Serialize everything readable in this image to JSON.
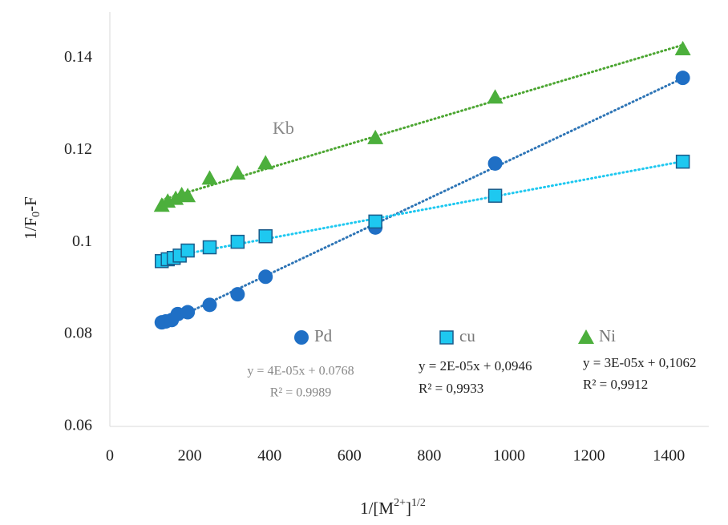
{
  "chart_data": {
    "type": "scatter",
    "y_label": [
      "1/F",
      "0",
      "-F"
    ],
    "x_label": [
      "1/[M",
      "2+",
      "]",
      "1/2"
    ],
    "xlim": [
      0,
      1500
    ],
    "xticks": [
      0,
      200,
      400,
      600,
      800,
      1000,
      1200,
      1400
    ],
    "ylim": [
      0.06,
      0.15
    ],
    "yticks": [
      0.06,
      0.08,
      0.1,
      0.12,
      0.14
    ],
    "grid": false,
    "series": [
      {
        "name": "Pd",
        "color": "#1f6fc5",
        "trend_color": "#2e75b6",
        "marker": "circle",
        "x": [
          130,
          140,
          155,
          170,
          195,
          250,
          320,
          390,
          665,
          965,
          1435
        ],
        "y": [
          0.0826,
          0.0828,
          0.0831,
          0.0844,
          0.0848,
          0.0864,
          0.0887,
          0.0925,
          0.1032,
          0.1171,
          0.1357
        ]
      },
      {
        "name": "cu",
        "color": "#1ec8f0",
        "trend_color": "#1ec8f0",
        "marker": "square",
        "x": [
          130,
          145,
          160,
          175,
          195,
          250,
          320,
          390,
          665,
          965,
          1435
        ],
        "y": [
          0.0959,
          0.0963,
          0.0966,
          0.0971,
          0.0982,
          0.0989,
          0.1001,
          0.1013,
          0.1045,
          0.1101,
          0.1175
        ]
      },
      {
        "name": "Ni",
        "color": "#4caf3c",
        "trend_color": "#4ca632",
        "marker": "triangle",
        "x": [
          130,
          145,
          165,
          180,
          195,
          250,
          320,
          390,
          665,
          965,
          1435
        ],
        "y": [
          0.108,
          0.1089,
          0.1095,
          0.1103,
          0.1101,
          0.1139,
          0.115,
          0.1172,
          0.1227,
          0.1315,
          0.142
        ]
      }
    ],
    "annotations": [
      "Kb",
      "y = 4E-05x + 0.0768",
      "R² = 0.9989",
      "y = 2E-05x + 0,0946",
      "R² = 0,9933",
      "y = 3E-05x + 0,1062",
      "R² = 0,9912"
    ]
  }
}
